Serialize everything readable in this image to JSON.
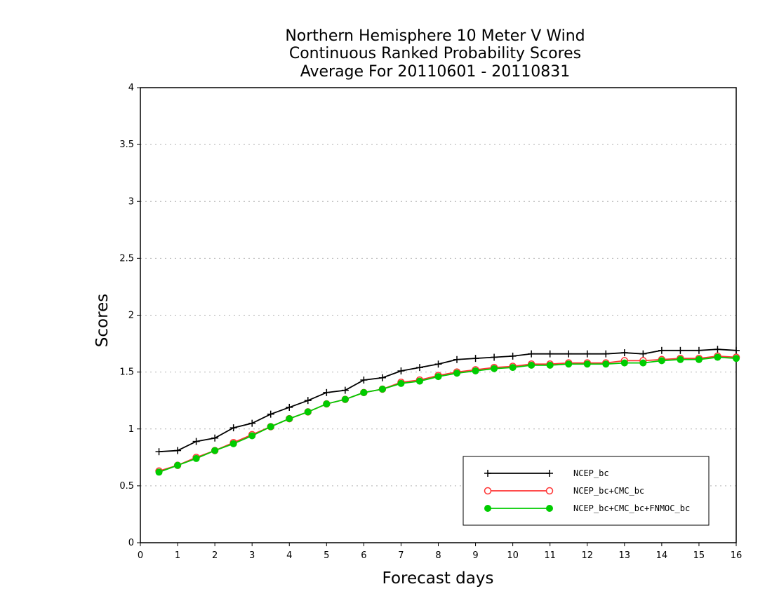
{
  "chart_data": {
    "type": "line",
    "title_lines": [
      "Northern Hemisphere 10 Meter V Wind",
      "Continuous Ranked Probability Scores",
      "Average For 20110601 - 20110831"
    ],
    "xlabel": "Forecast days",
    "ylabel": "Scores",
    "xlim": [
      0,
      16
    ],
    "ylim": [
      0,
      4
    ],
    "x_ticks": [
      "0",
      "1",
      "2",
      "3",
      "4",
      "5",
      "6",
      "7",
      "8",
      "9",
      "10",
      "11",
      "12",
      "13",
      "14",
      "15",
      "16"
    ],
    "y_ticks": [
      "0",
      "0.5",
      "1",
      "1.5",
      "2",
      "2.5",
      "3",
      "3.5",
      "4"
    ],
    "grid": "horizontal-dotted",
    "legend_position": "bottom-right",
    "x": [
      0.5,
      1,
      1.5,
      2,
      2.5,
      3,
      3.5,
      4,
      4.5,
      5,
      5.5,
      6,
      6.5,
      7,
      7.5,
      8,
      8.5,
      9,
      9.5,
      10,
      10.5,
      11,
      11.5,
      12,
      12.5,
      13,
      13.5,
      14,
      14.5,
      15,
      15.5,
      16
    ],
    "series": [
      {
        "name": "NCEP_bc",
        "color": "#000000",
        "marker": "plus",
        "values": [
          0.8,
          0.81,
          0.89,
          0.92,
          1.01,
          1.05,
          1.13,
          1.19,
          1.25,
          1.32,
          1.34,
          1.43,
          1.45,
          1.51,
          1.54,
          1.57,
          1.61,
          1.62,
          1.63,
          1.64,
          1.66,
          1.66,
          1.66,
          1.66,
          1.66,
          1.67,
          1.66,
          1.69,
          1.69,
          1.69,
          1.7,
          1.69
        ]
      },
      {
        "name": "NCEP_bc+CMC_bc",
        "color": "#ff3333",
        "marker": "open-circle",
        "values": [
          0.63,
          0.68,
          0.75,
          0.81,
          0.88,
          0.95,
          1.02,
          1.09,
          1.15,
          1.22,
          1.26,
          1.32,
          1.35,
          1.41,
          1.43,
          1.47,
          1.5,
          1.52,
          1.54,
          1.55,
          1.57,
          1.57,
          1.58,
          1.58,
          1.58,
          1.6,
          1.6,
          1.61,
          1.62,
          1.62,
          1.64,
          1.63
        ]
      },
      {
        "name": "NCEP_bc+CMC_bc+FNMOC_bc",
        "color": "#00cc00",
        "marker": "filled-circle",
        "values": [
          0.62,
          0.68,
          0.74,
          0.81,
          0.87,
          0.94,
          1.02,
          1.09,
          1.15,
          1.22,
          1.26,
          1.32,
          1.35,
          1.4,
          1.42,
          1.46,
          1.49,
          1.51,
          1.53,
          1.54,
          1.56,
          1.56,
          1.57,
          1.57,
          1.57,
          1.58,
          1.58,
          1.6,
          1.61,
          1.61,
          1.63,
          1.62
        ]
      }
    ]
  }
}
